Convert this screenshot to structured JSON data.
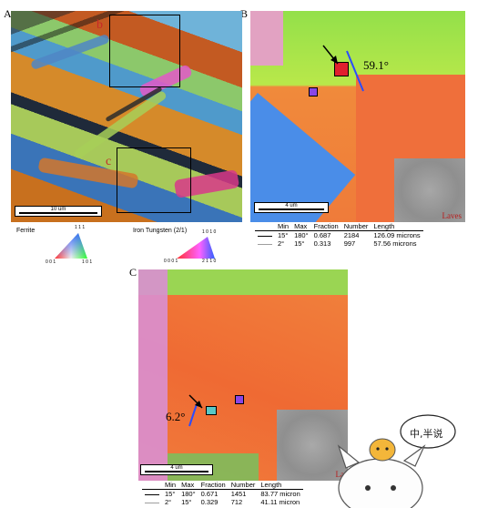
{
  "panels": {
    "a": {
      "letter": "A",
      "sub_labels": [
        "b",
        "c"
      ],
      "scale_bar": "10 um",
      "legend_ferrite": {
        "title": "Ferrite",
        "top": "1 1 1",
        "bl": "0 0 1",
        "br": "1 0 1"
      },
      "legend_laves": {
        "title": "Iron Tungsten (2/1)",
        "top": "1 0 1 0",
        "bl": "0 0 0 1",
        "br": "2 1 1 0"
      }
    },
    "b": {
      "letter": "B",
      "angle": "59.1°",
      "scale_bar": "4 um",
      "laves_label": "Laves",
      "table": {
        "headers": [
          "",
          "Min",
          "Max",
          "Fraction",
          "Number",
          "Length"
        ],
        "rows": [
          {
            "line": "black",
            "min": "15°",
            "max": "180°",
            "fraction": "0.687",
            "number": "2184",
            "length": "126.09 microns"
          },
          {
            "line": "grey",
            "min": "2°",
            "max": "15°",
            "fraction": "0.313",
            "number": "997",
            "length": "57.56 microns"
          }
        ]
      }
    },
    "c": {
      "letter": "C",
      "angle": "6.2°",
      "scale_bar": "4 um",
      "laves_label": "La",
      "table": {
        "headers": [
          "",
          "Min",
          "Max",
          "Fraction",
          "Number",
          "Length"
        ],
        "rows": [
          {
            "line": "black",
            "min": "15°",
            "max": "180°",
            "fraction": "0.671",
            "number": "1451",
            "length": "83.77 micron"
          },
          {
            "line": "grey",
            "min": "2°",
            "max": "15°",
            "fraction": "0.329",
            "number": "712",
            "length": "41.11 micron"
          }
        ]
      }
    }
  },
  "mascot": {
    "bubble_text": "中,半说"
  },
  "colors": {
    "laves_text": "#b71c1c",
    "blue_line": "#2a4cff"
  }
}
